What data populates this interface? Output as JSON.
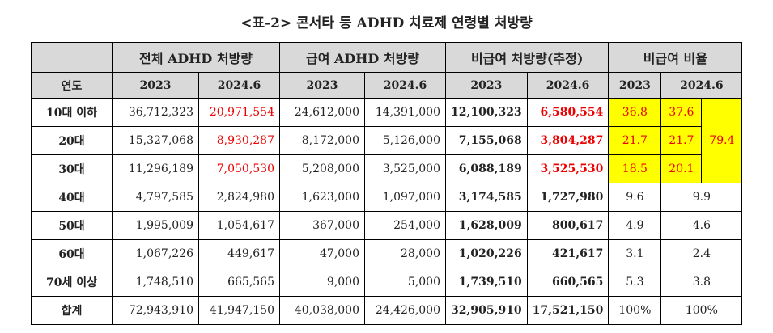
{
  "title": "<표-2> 콘서타 등 ADHD 치료제 연령별 처방량",
  "headers": {
    "groups": [
      "전체 ADHD 처방량",
      "급여 ADHD 처방량",
      "비급여 처방량(추정)",
      "비급여 비율"
    ],
    "year_label": "연도",
    "y2023": "2023",
    "y2024": "2024.6"
  },
  "rows": [
    {
      "age": "10대 이하",
      "v": [
        "36,712,323",
        "20,971,554",
        "24,612,000",
        "14,391,000",
        "12,100,323",
        "6,580,554",
        "36.8",
        "37.6"
      ]
    },
    {
      "age": "20대",
      "v": [
        "15,327,068",
        "8,930,287",
        "8,172,000",
        "5,126,000",
        "7,155,068",
        "3,804,287",
        "21.7",
        "21.7"
      ]
    },
    {
      "age": "30대",
      "v": [
        "11,296,189",
        "7,050,530",
        "5,208,000",
        "3,525,000",
        "6,088,189",
        "3,525,530",
        "18.5",
        "20.1"
      ]
    },
    {
      "age": "40대",
      "v": [
        "4,797,585",
        "2,824,980",
        "1,623,000",
        "1,097,000",
        "3,174,585",
        "1,727,980",
        "9.6",
        "9.9"
      ]
    },
    {
      "age": "50대",
      "v": [
        "1,995,009",
        "1,054,617",
        "367,000",
        "254,000",
        "1,628,009",
        "800,617",
        "4.9",
        "4.6"
      ]
    },
    {
      "age": "60대",
      "v": [
        "1,067,226",
        "449,617",
        "47,000",
        "28,000",
        "1,020,226",
        "421,617",
        "3.1",
        "2.4"
      ]
    },
    {
      "age": "70세 이상",
      "v": [
        "1,748,510",
        "665,565",
        "9,000",
        "5,000",
        "1,739,510",
        "660,565",
        "5.3",
        "3.8"
      ]
    },
    {
      "age": "합계",
      "v": [
        "72,943,910",
        "41,947,150",
        "40,038,000",
        "24,426,000",
        "32,905,910",
        "17,521,150",
        "100%",
        "100%"
      ]
    }
  ],
  "combined_10_30_2024": "79.4",
  "highlight_color": "#ffff00",
  "red_color": "#e00000"
}
